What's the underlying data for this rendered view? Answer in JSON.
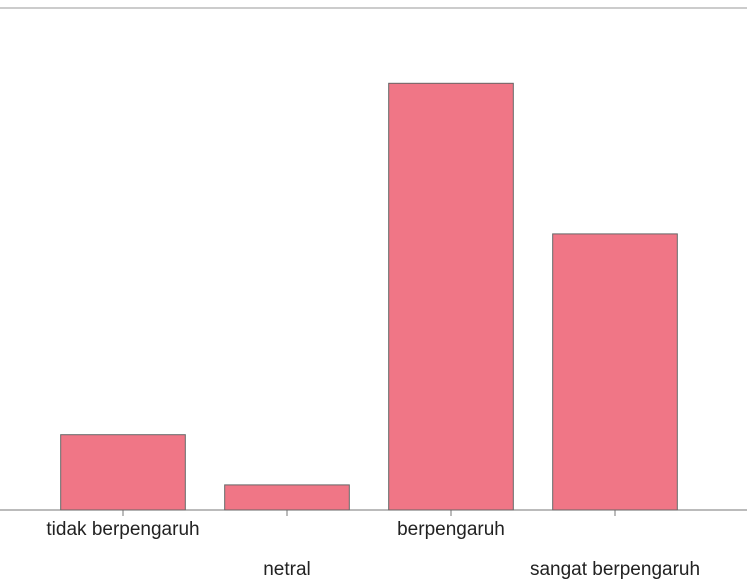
{
  "chart_data": {
    "type": "bar",
    "categories": [
      "tidak berpengaruh",
      "netral",
      "berpengaruh",
      "sangat berpengaruh"
    ],
    "values": [
      3,
      1,
      17,
      11
    ],
    "color": "#ef6f80",
    "ylim": [
      0,
      20
    ]
  }
}
